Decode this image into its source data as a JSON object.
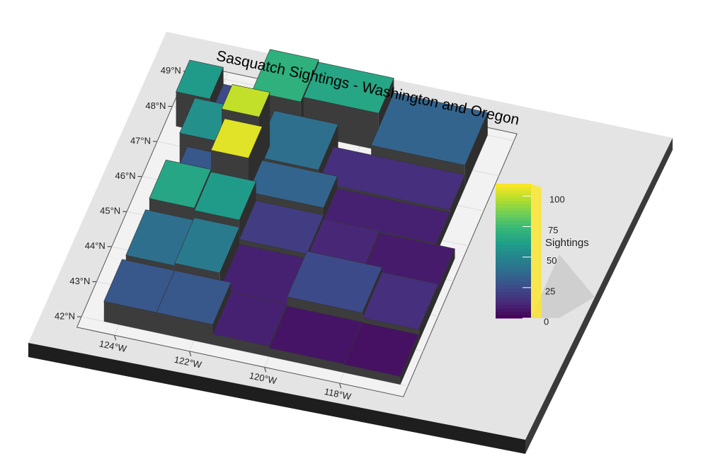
{
  "map": {
    "title": "Sasquatch Sightings - Washington and Oregon",
    "xlim": [
      -125,
      -116.3
    ],
    "ylim": [
      41.7,
      49.2
    ],
    "lat_ticks": [
      {
        "value": 42,
        "label": "42°N"
      },
      {
        "value": 43,
        "label": "43°N"
      },
      {
        "value": 44,
        "label": "44°N"
      },
      {
        "value": 45,
        "label": "45°N"
      },
      {
        "value": 46,
        "label": "46°N"
      },
      {
        "value": 47,
        "label": "47°N"
      },
      {
        "value": 48,
        "label": "48°N"
      },
      {
        "value": 49,
        "label": "49°N"
      }
    ],
    "lon_ticks": [
      {
        "value": -124,
        "label": "124°W"
      },
      {
        "value": -122,
        "label": "122°W"
      },
      {
        "value": -120,
        "label": "120°W"
      },
      {
        "value": -118,
        "label": "118°W"
      }
    ],
    "colormap": "viridis",
    "legend": {
      "title": "Sightings",
      "lim": [
        0,
        110
      ],
      "ticks": [
        0,
        25,
        50,
        75,
        100
      ]
    },
    "values": [
      60,
      25,
      70,
      65,
      35,
      55,
      100,
      40,
      15,
      30,
      105,
      35,
      10,
      65,
      60,
      20,
      12,
      8,
      40,
      45,
      10,
      25,
      15,
      30,
      30,
      10,
      6,
      5
    ]
  }
}
